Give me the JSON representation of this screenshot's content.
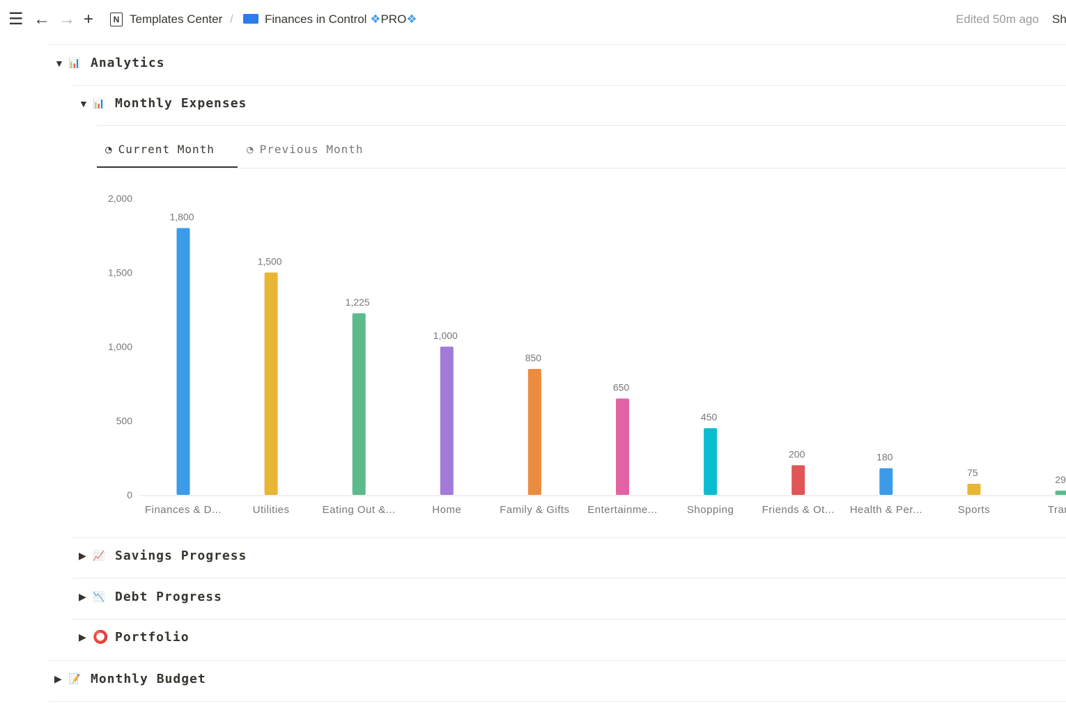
{
  "topbar": {
    "breadcrumb_1": "Templates Center",
    "separator": "/",
    "breadcrumb_2": "Finances in Control",
    "pro": "PRO",
    "edited": "Edited 50m ago",
    "share": "Sh"
  },
  "sections": {
    "analytics": "Analytics",
    "monthly_expenses": "Monthly Expenses",
    "savings": "Savings Progress",
    "debt": "Debt Progress",
    "portfolio": "Portfolio",
    "budget": "Monthly Budget"
  },
  "tabs": [
    {
      "label": "Current Month",
      "active": true
    },
    {
      "label": "Previous Month",
      "active": false
    }
  ],
  "chart_data": {
    "type": "bar",
    "categories": [
      "Finances & D...",
      "Utilities",
      "Eating Out &...",
      "Home",
      "Family & Gifts",
      "Entertainme...",
      "Shopping",
      "Friends & Ot...",
      "Health & Per...",
      "Sports",
      "Trans"
    ],
    "values": [
      1800,
      1500,
      1225,
      1000,
      850,
      650,
      450,
      200,
      180,
      75,
      29
    ],
    "value_labels": [
      "1,800",
      "1,500",
      "1,225",
      "1,000",
      "850",
      "650",
      "450",
      "200",
      "180",
      "75",
      "29"
    ],
    "colors": [
      "#3b9be8",
      "#e8b535",
      "#5dba8a",
      "#a27ad9",
      "#ec8c40",
      "#e163a4",
      "#0bbcd0",
      "#e05555",
      "#3b9be8",
      "#e8b535",
      "#5dba8a"
    ],
    "yticks": [
      0,
      500,
      1000,
      1500,
      2000
    ],
    "ytick_labels": [
      "0",
      "500",
      "1,000",
      "1,500",
      "2,000"
    ],
    "ylim": [
      0,
      2000
    ],
    "title": "",
    "xlabel": "",
    "ylabel": ""
  }
}
